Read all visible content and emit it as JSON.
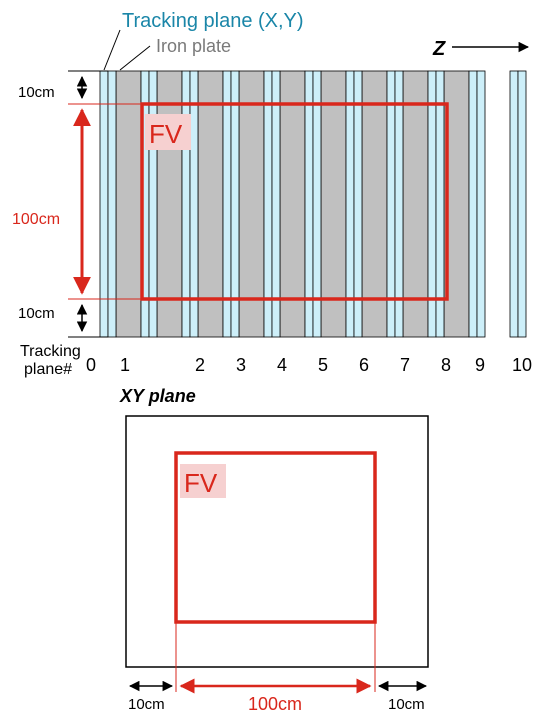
{
  "top_view": {
    "label_tracking_plane": "Tracking plane (X,Y)",
    "label_iron_plate": "Iron plate",
    "z_axis_label": "Z",
    "fv_label": "FV",
    "dim_top": "10cm",
    "dim_middle": "100cm",
    "dim_bottom": "10cm",
    "plane_number_title_line1": "Tracking",
    "plane_number_title_line2": "plane#",
    "plane_numbers": [
      "0",
      "1",
      "2",
      "3",
      "4",
      "5",
      "6",
      "7",
      "8",
      "9",
      "10"
    ]
  },
  "xy_view": {
    "title": "XY plane",
    "fv_label": "FV",
    "dim_left": "10cm",
    "dim_middle": "100cm",
    "dim_right": "10cm"
  },
  "colors": {
    "tracking_plane_fill": "#cdeff9",
    "iron_plate_fill": "#c0c0c0",
    "fv_red": "#d9271c",
    "fv_label_bg": "#f6d0d0",
    "tracking_label_color": "#1a86a8",
    "iron_label_color": "#7a7a7a"
  }
}
